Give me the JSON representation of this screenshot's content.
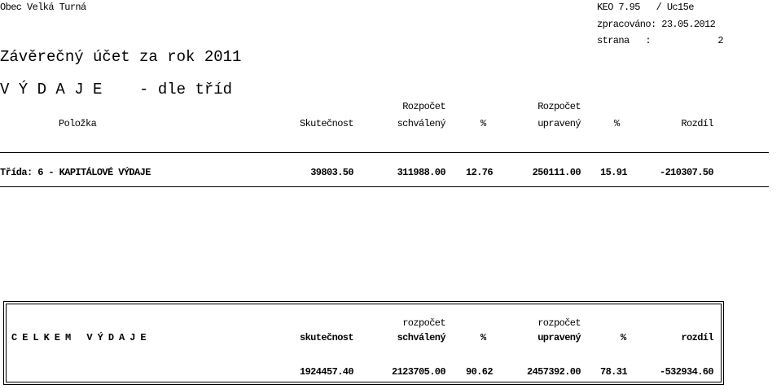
{
  "header": {
    "org": "Obec Velká Turná",
    "version": "KEO 7.95   / Uc15e",
    "processed": "zpracováno: 23.05.2012",
    "page_label": "strana   :",
    "page": "2",
    "title": "Závěrečný účet za rok 2011",
    "subtitle": "V Ý D A J E    - dle tříd"
  },
  "table": {
    "header_top": [
      "Rozpočet",
      "Rozpočet"
    ],
    "header": [
      "Položka",
      "Skutečnost",
      "schválený",
      "%",
      "upravený",
      "%",
      "Rozdíl"
    ],
    "rows": [
      [
        "Třída: 6 - KAPITÁLOVÉ VÝDAJE",
        "39803.50",
        "311988.00",
        "12.76",
        "250111.00",
        "15.91",
        "-210307.50"
      ]
    ]
  },
  "total": {
    "header_top": [
      "rozpočet",
      "rozpočet"
    ],
    "header": [
      "C E L K E M   V Ý D A J E",
      "skutečnost",
      "schválený",
      "%",
      "upravený",
      "%",
      "rozdíl"
    ],
    "values": [
      "1924457.40",
      "2123705.00",
      "90.62",
      "2457392.00",
      "78.31",
      "-532934.60"
    ]
  }
}
